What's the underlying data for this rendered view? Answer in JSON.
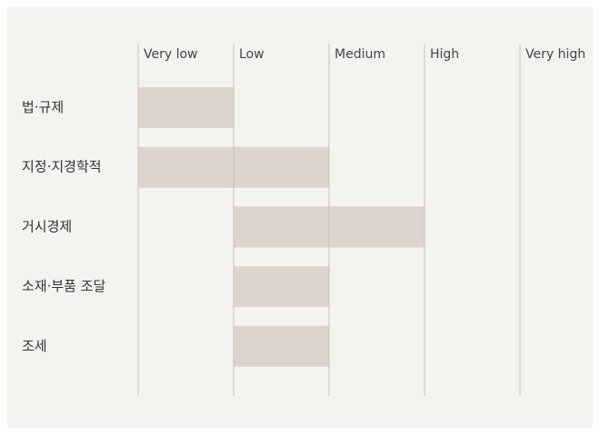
{
  "chart_data": {
    "type": "range-bar",
    "categories": [
      "법·규제",
      "지정·지경학적",
      "거시경제",
      "소재·부품 조달",
      "조세"
    ],
    "start": [
      1,
      1,
      2,
      2,
      2
    ],
    "end": [
      2,
      3,
      4,
      3,
      3
    ],
    "color": "#ddd4cd",
    "xlim": [
      1,
      5
    ],
    "xticks": [
      {
        "value": 1,
        "label": "Very low"
      },
      {
        "value": 2,
        "label": "Low"
      },
      {
        "value": 3,
        "label": "Medium"
      },
      {
        "value": 4,
        "label": "High"
      },
      {
        "value": 5,
        "label": "Very high"
      }
    ],
    "grid": true
  }
}
